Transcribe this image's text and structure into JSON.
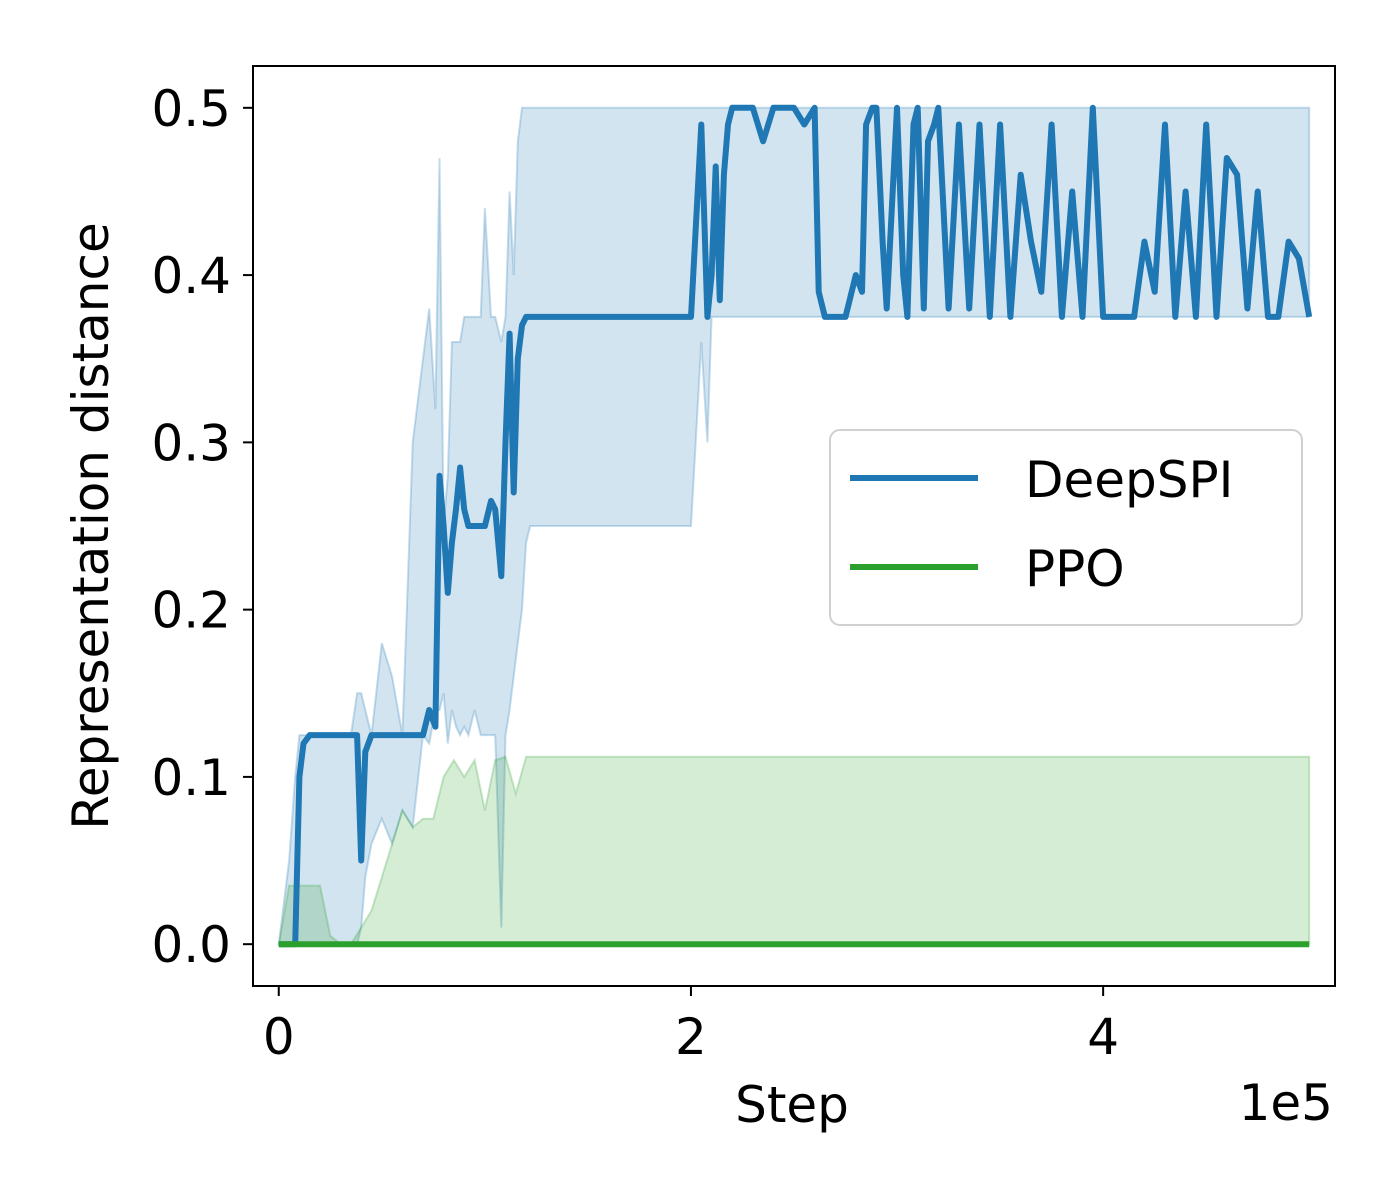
{
  "chart_data": {
    "type": "line",
    "xlabel": "Step",
    "ylabel": "Representation distance",
    "x_offset_text": "1e5",
    "xlim": [
      -0.125,
      5.125
    ],
    "ylim": [
      -0.025,
      0.525
    ],
    "x_ticks": [
      {
        "value": 0,
        "label": "0"
      },
      {
        "value": 2,
        "label": "2"
      },
      {
        "value": 4,
        "label": "4"
      }
    ],
    "y_ticks": [
      {
        "value": 0.0,
        "label": "0.0"
      },
      {
        "value": 0.1,
        "label": "0.1"
      },
      {
        "value": 0.2,
        "label": "0.2"
      },
      {
        "value": 0.3,
        "label": "0.3"
      },
      {
        "value": 0.4,
        "label": "0.4"
      },
      {
        "value": 0.5,
        "label": "0.5"
      }
    ],
    "grid": false,
    "legend_position": "center-right",
    "series": [
      {
        "name": "DeepSPI",
        "color": "#1f77b4",
        "x": [
          0,
          0.05,
          0.08,
          0.1,
          0.12,
          0.15,
          0.2,
          0.25,
          0.3,
          0.35,
          0.38,
          0.4,
          0.42,
          0.45,
          0.5,
          0.55,
          0.6,
          0.65,
          0.7,
          0.73,
          0.76,
          0.78,
          0.8,
          0.82,
          0.84,
          0.86,
          0.88,
          0.9,
          0.92,
          0.95,
          0.98,
          1.0,
          1.03,
          1.05,
          1.08,
          1.1,
          1.12,
          1.14,
          1.16,
          1.18,
          1.2,
          1.22,
          1.25,
          1.3,
          1.5,
          1.8,
          2.0,
          2.05,
          2.08,
          2.1,
          2.12,
          2.14,
          2.16,
          2.18,
          2.2,
          2.22,
          2.25,
          2.3,
          2.35,
          2.4,
          2.42,
          2.45,
          2.5,
          2.55,
          2.6,
          2.62,
          2.65,
          2.67,
          2.7,
          2.75,
          2.8,
          2.83,
          2.85,
          2.88,
          2.9,
          2.93,
          2.95,
          3.0,
          3.03,
          3.05,
          3.08,
          3.1,
          3.13,
          3.15,
          3.18,
          3.2,
          3.25,
          3.3,
          3.35,
          3.4,
          3.45,
          3.5,
          3.55,
          3.6,
          3.65,
          3.7,
          3.75,
          3.8,
          3.85,
          3.9,
          3.95,
          4.0,
          4.1,
          4.15,
          4.2,
          4.25,
          4.3,
          4.35,
          4.4,
          4.45,
          4.5,
          4.55,
          4.6,
          4.65,
          4.7,
          4.75,
          4.8,
          4.85,
          4.9,
          4.95,
          5.0
        ],
        "y": [
          0,
          0,
          0,
          0.1,
          0.12,
          0.125,
          0.125,
          0.125,
          0.125,
          0.125,
          0.125,
          0.05,
          0.115,
          0.125,
          0.125,
          0.125,
          0.125,
          0.125,
          0.125,
          0.14,
          0.13,
          0.28,
          0.25,
          0.21,
          0.24,
          0.26,
          0.285,
          0.26,
          0.25,
          0.25,
          0.25,
          0.25,
          0.265,
          0.26,
          0.22,
          0.3,
          0.365,
          0.27,
          0.35,
          0.37,
          0.375,
          0.375,
          0.375,
          0.375,
          0.375,
          0.375,
          0.375,
          0.49,
          0.375,
          0.4,
          0.465,
          0.385,
          0.46,
          0.49,
          0.5,
          0.5,
          0.5,
          0.5,
          0.48,
          0.5,
          0.5,
          0.5,
          0.5,
          0.49,
          0.5,
          0.39,
          0.375,
          0.375,
          0.375,
          0.375,
          0.4,
          0.39,
          0.49,
          0.5,
          0.5,
          0.42,
          0.38,
          0.5,
          0.4,
          0.375,
          0.49,
          0.5,
          0.38,
          0.48,
          0.49,
          0.5,
          0.38,
          0.49,
          0.38,
          0.49,
          0.375,
          0.49,
          0.375,
          0.46,
          0.42,
          0.39,
          0.49,
          0.375,
          0.45,
          0.375,
          0.5,
          0.375,
          0.375,
          0.375,
          0.42,
          0.39,
          0.49,
          0.375,
          0.45,
          0.375,
          0.49,
          0.375,
          0.47,
          0.46,
          0.38,
          0.45,
          0.375,
          0.375,
          0.42,
          0.41,
          0.375
        ],
        "band_upper": [
          0,
          0.05,
          0.1,
          0.125,
          0.125,
          0.125,
          0.125,
          0.125,
          0.125,
          0.125,
          0.15,
          0.15,
          0.14,
          0.125,
          0.18,
          0.16,
          0.125,
          0.3,
          0.35,
          0.38,
          0.32,
          0.47,
          0.25,
          0.28,
          0.36,
          0.36,
          0.36,
          0.375,
          0.375,
          0.375,
          0.375,
          0.44,
          0.375,
          0.375,
          0.36,
          0.375,
          0.45,
          0.4,
          0.48,
          0.5,
          0.5,
          0.5,
          0.5,
          0.5,
          0.5,
          0.5,
          0.5,
          0.5,
          0.5,
          0.5,
          0.5,
          0.5,
          0.5,
          0.5,
          0.5,
          0.5,
          0.5,
          0.5,
          0.5,
          0.5,
          0.5,
          0.5,
          0.5,
          0.5,
          0.5,
          0.5,
          0.5,
          0.5,
          0.5,
          0.5,
          0.5,
          0.5,
          0.5,
          0.5,
          0.5,
          0.5,
          0.5,
          0.5,
          0.5,
          0.5,
          0.5,
          0.5,
          0.5,
          0.5,
          0.5,
          0.5,
          0.5,
          0.5,
          0.5,
          0.5,
          0.5,
          0.5,
          0.5,
          0.5,
          0.5,
          0.5,
          0.5,
          0.5,
          0.5,
          0.5,
          0.5,
          0.5,
          0.5,
          0.5,
          0.5,
          0.5,
          0.5,
          0.5,
          0.5,
          0.5,
          0.5,
          0.5,
          0.5,
          0.5,
          0.5,
          0.5,
          0.5,
          0.5,
          0.5,
          0.5,
          0.5
        ],
        "band_lower": [
          0,
          0,
          0,
          0,
          0,
          0,
          0,
          0,
          0,
          0,
          0,
          0.01,
          0.04,
          0.06,
          0.075,
          0.06,
          0.08,
          0.07,
          0.125,
          0.12,
          0.14,
          0.14,
          0.15,
          0.12,
          0.14,
          0.13,
          0.125,
          0.13,
          0.125,
          0.14,
          0.125,
          0.125,
          0.125,
          0.125,
          0.01,
          0.125,
          0.14,
          0.16,
          0.18,
          0.2,
          0.24,
          0.25,
          0.25,
          0.25,
          0.25,
          0.25,
          0.25,
          0.36,
          0.3,
          0.375,
          0.375,
          0.375,
          0.375,
          0.375,
          0.375,
          0.375,
          0.375,
          0.375,
          0.375,
          0.375,
          0.375,
          0.375,
          0.375,
          0.375,
          0.375,
          0.375,
          0.375,
          0.375,
          0.375,
          0.375,
          0.375,
          0.375,
          0.375,
          0.375,
          0.375,
          0.375,
          0.375,
          0.375,
          0.375,
          0.375,
          0.375,
          0.375,
          0.375,
          0.375,
          0.375,
          0.375,
          0.375,
          0.375,
          0.375,
          0.375,
          0.375,
          0.375,
          0.375,
          0.375,
          0.375,
          0.375,
          0.375,
          0.375,
          0.375,
          0.375,
          0.375,
          0.375,
          0.375,
          0.375,
          0.375,
          0.375,
          0.375,
          0.375,
          0.375,
          0.375,
          0.375,
          0.375,
          0.375,
          0.375,
          0.375,
          0.375,
          0.375,
          0.375,
          0.375,
          0.375,
          0.375
        ]
      },
      {
        "name": "PPO",
        "color": "#2ca02c",
        "x": [
          0,
          0.05,
          0.1,
          0.15,
          0.2,
          0.25,
          0.3,
          0.35,
          0.4,
          0.45,
          0.5,
          0.55,
          0.6,
          0.65,
          0.7,
          0.75,
          0.8,
          0.85,
          0.9,
          0.95,
          1.0,
          1.05,
          1.1,
          1.15,
          1.2,
          1.25,
          1.5,
          2.0,
          3.0,
          4.0,
          5.0
        ],
        "y": [
          0,
          0,
          0,
          0,
          0,
          0,
          0,
          0,
          0,
          0,
          0,
          0,
          0,
          0,
          0,
          0,
          0,
          0,
          0,
          0,
          0,
          0,
          0,
          0,
          0,
          0,
          0,
          0,
          0,
          0,
          0
        ],
        "band_upper": [
          0,
          0.035,
          0.035,
          0.035,
          0.035,
          0.005,
          0.0,
          0.0,
          0.01,
          0.02,
          0.04,
          0.06,
          0.08,
          0.07,
          0.075,
          0.075,
          0.1,
          0.11,
          0.1,
          0.11,
          0.08,
          0.11,
          0.112,
          0.09,
          0.112,
          0.112,
          0.112,
          0.112,
          0.112,
          0.112,
          0.112
        ],
        "band_lower": [
          0,
          0,
          0,
          0,
          0,
          0,
          0,
          0,
          0,
          0,
          0,
          0,
          0,
          0,
          0,
          0,
          0,
          0,
          0,
          0,
          0,
          0,
          0,
          0,
          0,
          0,
          0,
          0,
          0,
          0,
          0
        ]
      }
    ]
  }
}
